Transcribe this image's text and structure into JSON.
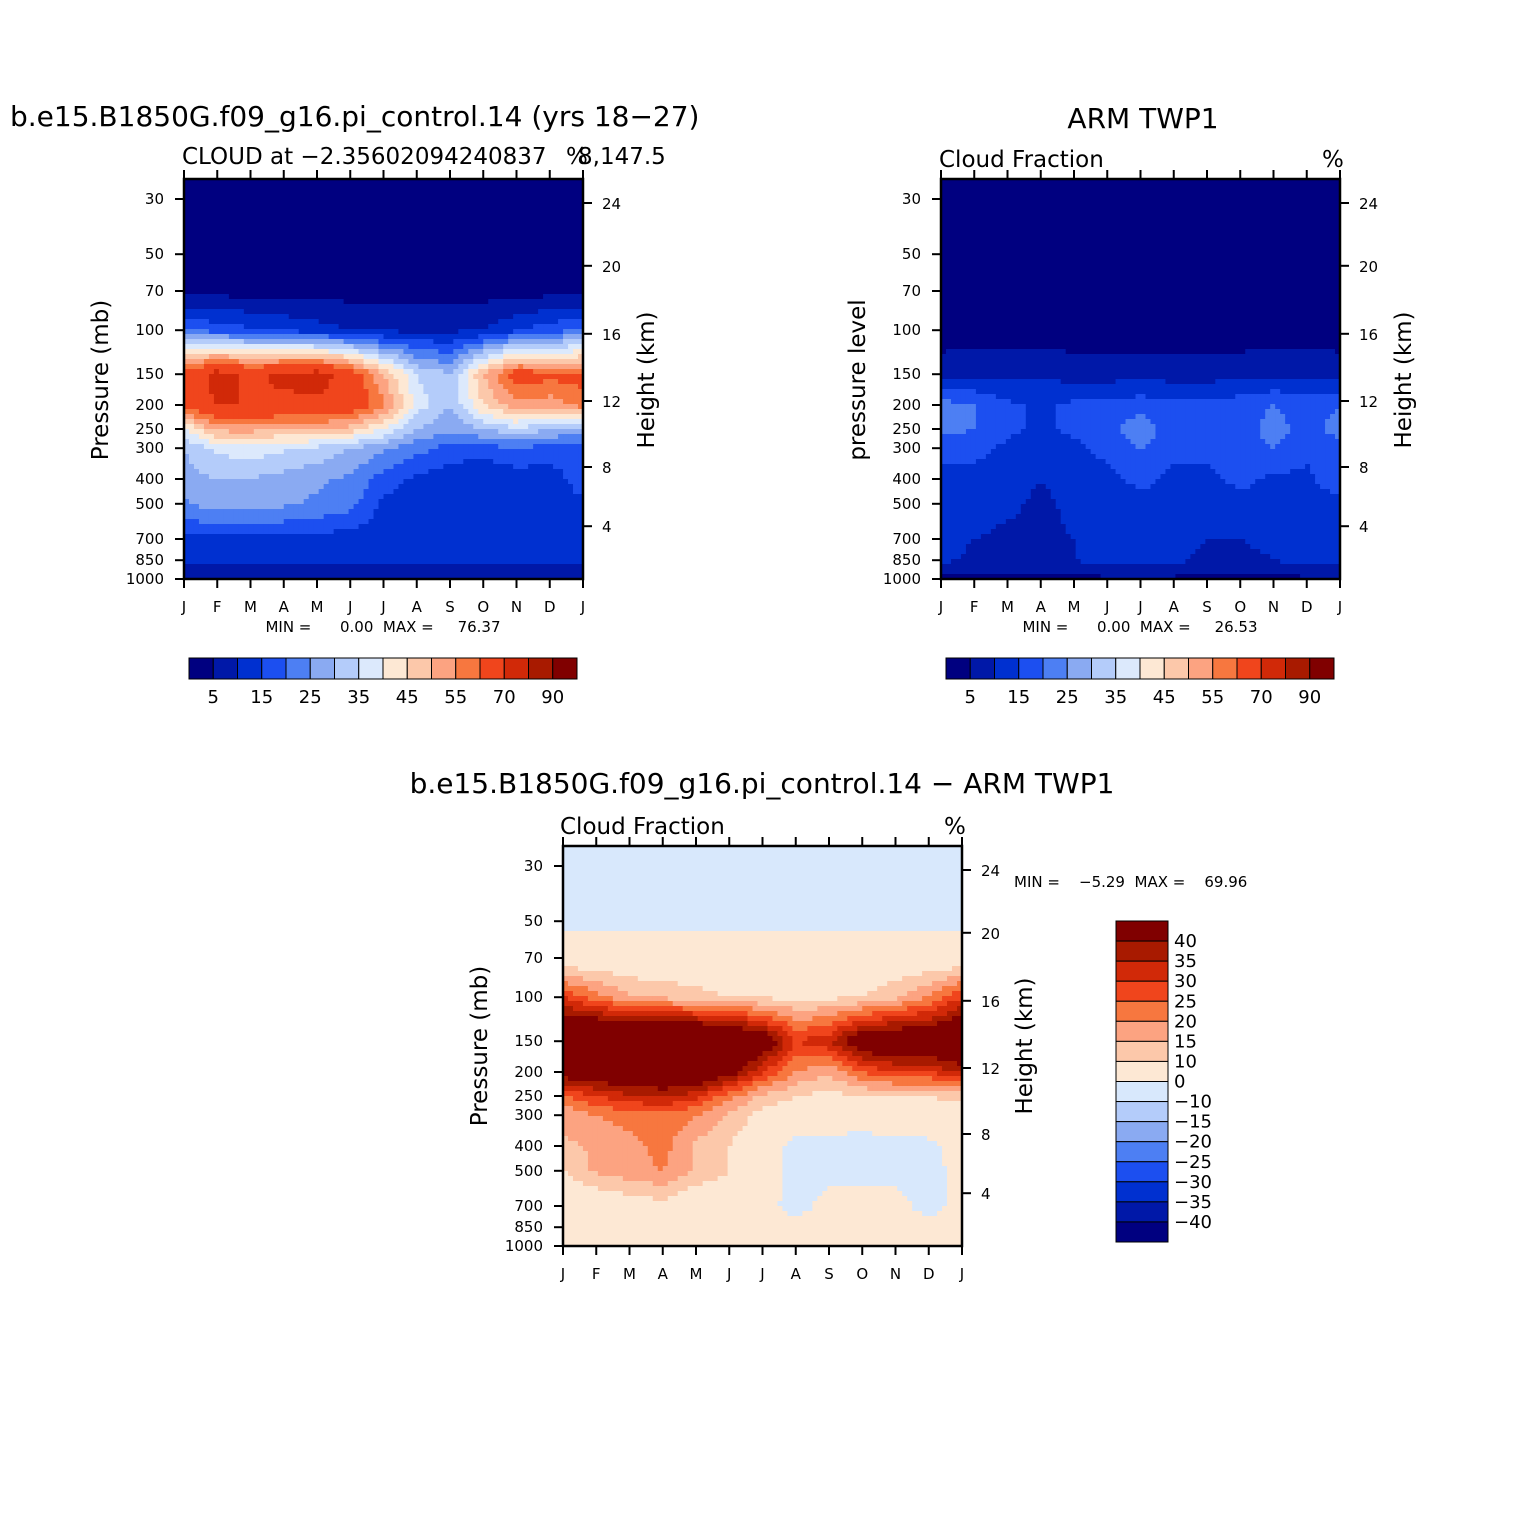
{
  "palette": {
    "abs": [
      "#000080",
      "#0018a8",
      "#0030d0",
      "#1c4ff0",
      "#4d7ff3",
      "#8aaaf2",
      "#b4ccfa",
      "#dce9fc",
      "#fde8d4",
      "#fcc8aa",
      "#fca381",
      "#f7773f",
      "#f0451c",
      "#d12908",
      "#a81a00",
      "#800000"
    ],
    "diff": [
      "#000080",
      "#0018a8",
      "#0030d0",
      "#1c4ff0",
      "#4d7ff3",
      "#8aaaf2",
      "#b4ccfa",
      "#d8e8fc",
      "#fde8d4",
      "#fcc8aa",
      "#fca381",
      "#f7773f",
      "#f0451c",
      "#d12908",
      "#a81a00",
      "#800000"
    ]
  },
  "panel1": {
    "title": "b.e15.B1850G.f09_g16.pi_control.14 (yrs 18−27)",
    "subtitle": "CLOUD at −2.35602094240837",
    "subtitle2": "8,147.5",
    "units": "%",
    "ylabel": "Pressure (mb)",
    "ylabel_right": "Height (km)",
    "minmax": "MIN =      0.00  MAX =     76.37",
    "colorbar_labels": [
      "5",
      "15",
      "25",
      "35",
      "45",
      "55",
      "70",
      "90"
    ]
  },
  "panel2": {
    "title": "ARM TWP1",
    "subtitle": "Cloud Fraction",
    "units": "%",
    "ylabel": "pressure level",
    "ylabel_right": "Height (km)",
    "minmax": "MIN =      0.00  MAX =     26.53",
    "colorbar_labels": [
      "5",
      "15",
      "25",
      "35",
      "45",
      "55",
      "70",
      "90"
    ]
  },
  "panel3": {
    "title": "b.e15.B1850G.f09_g16.pi_control.14 − ARM TWP1",
    "subtitle": "Cloud Fraction",
    "units": "%",
    "ylabel": "Pressure (mb)",
    "ylabel_right": "Height (km)",
    "minmax": "MIN =    −5.29  MAX =    69.96",
    "colorbar_labels": [
      "40",
      "35",
      "30",
      "25",
      "20",
      "15",
      "10",
      "0",
      "−10",
      "−15",
      "−20",
      "−25",
      "−30",
      "−35",
      "−40"
    ]
  },
  "chart_data": [
    {
      "type": "heatmap",
      "title": "b.e15.B1850G.f09_g16.pi_control.14 (yrs 18−27)",
      "x": [
        "J",
        "F",
        "M",
        "A",
        "M",
        "J",
        "J",
        "A",
        "S",
        "O",
        "N",
        "D",
        "J"
      ],
      "y_pressure_mb": [
        30,
        50,
        70,
        100,
        150,
        200,
        250,
        300,
        400,
        500,
        700,
        850,
        1000
      ],
      "y_height_km": [
        24,
        20,
        16,
        12,
        8,
        4
      ],
      "ylabel": "Pressure (mb)",
      "ylabel_right": "Height (km)",
      "min": 0.0,
      "max": 76.37,
      "levels": [
        5,
        10,
        15,
        20,
        25,
        30,
        35,
        40,
        45,
        50,
        55,
        60,
        70,
        80,
        90
      ],
      "values": [
        [
          2,
          2,
          2,
          2,
          2,
          2,
          2,
          2,
          2,
          2,
          2,
          2,
          2
        ],
        [
          2,
          2,
          2,
          2,
          2,
          2,
          2,
          2,
          2,
          2,
          2,
          2,
          2
        ],
        [
          3,
          3,
          3,
          3,
          3,
          3,
          3,
          3,
          3,
          3,
          3,
          3,
          3
        ],
        [
          20,
          18,
          16,
          14,
          12,
          10,
          9,
          9,
          9,
          10,
          14,
          18,
          20
        ],
        [
          62,
          74,
          68,
          72,
          74,
          66,
          50,
          35,
          30,
          50,
          64,
          62,
          62
        ],
        [
          62,
          70,
          70,
          68,
          68,
          66,
          56,
          38,
          30,
          45,
          54,
          52,
          58
        ],
        [
          40,
          52,
          52,
          50,
          50,
          48,
          40,
          30,
          26,
          30,
          34,
          30,
          28
        ],
        [
          30,
          36,
          38,
          36,
          34,
          30,
          26,
          22,
          18,
          18,
          20,
          18,
          18
        ],
        [
          28,
          30,
          30,
          28,
          26,
          24,
          18,
          14,
          12,
          10,
          12,
          12,
          18
        ],
        [
          24,
          28,
          28,
          26,
          24,
          22,
          14,
          10,
          10,
          10,
          12,
          12,
          14
        ],
        [
          14,
          14,
          14,
          14,
          14,
          12,
          12,
          12,
          12,
          12,
          12,
          12,
          12
        ],
        [
          12,
          12,
          12,
          12,
          12,
          12,
          12,
          12,
          12,
          12,
          12,
          12,
          12
        ],
        [
          5,
          5,
          5,
          5,
          5,
          5,
          5,
          5,
          5,
          5,
          5,
          5,
          5
        ]
      ]
    },
    {
      "type": "heatmap",
      "title": "ARM TWP1",
      "subtitle": "Cloud Fraction",
      "x": [
        "J",
        "F",
        "M",
        "A",
        "M",
        "J",
        "J",
        "A",
        "S",
        "O",
        "N",
        "D",
        "J"
      ],
      "y_pressure_mb": [
        30,
        50,
        70,
        100,
        150,
        200,
        250,
        300,
        400,
        500,
        700,
        850,
        1000
      ],
      "y_height_km": [
        24,
        20,
        16,
        12,
        8,
        4
      ],
      "ylabel": "pressure level",
      "ylabel_right": "Height (km)",
      "min": 0.0,
      "max": 26.53,
      "levels": [
        5,
        10,
        15,
        20,
        25,
        30,
        35,
        40,
        45,
        50,
        55,
        60,
        70,
        80,
        90
      ],
      "values": [
        [
          1,
          1,
          1,
          1,
          1,
          1,
          1,
          1,
          1,
          1,
          1,
          1,
          1
        ],
        [
          1,
          1,
          1,
          1,
          1,
          1,
          1,
          1,
          1,
          1,
          1,
          1,
          1
        ],
        [
          1,
          1,
          1,
          1,
          1,
          1,
          1,
          1,
          1,
          1,
          1,
          1,
          1
        ],
        [
          2,
          2,
          2,
          2,
          2,
          2,
          2,
          2,
          2,
          2,
          2,
          2,
          2
        ],
        [
          8,
          9,
          9,
          9,
          8,
          8,
          8,
          8,
          8,
          8,
          9,
          9,
          8
        ],
        [
          22,
          20,
          16,
          14,
          16,
          16,
          18,
          16,
          16,
          18,
          20,
          18,
          20
        ],
        [
          22,
          20,
          16,
          14,
          16,
          18,
          24,
          16,
          16,
          18,
          22,
          18,
          22
        ],
        [
          16,
          16,
          14,
          12,
          14,
          16,
          20,
          16,
          16,
          18,
          20,
          16,
          18
        ],
        [
          14,
          14,
          14,
          10,
          14,
          14,
          16,
          14,
          14,
          16,
          14,
          14,
          18
        ],
        [
          14,
          14,
          12,
          8,
          12,
          12,
          14,
          14,
          12,
          14,
          14,
          12,
          14
        ],
        [
          12,
          10,
          8,
          8,
          10,
          12,
          12,
          12,
          10,
          10,
          12,
          12,
          12
        ],
        [
          11,
          9,
          8,
          8,
          10,
          12,
          12,
          12,
          8,
          8,
          10,
          12,
          12
        ],
        [
          4,
          4,
          4,
          4,
          4,
          4,
          4,
          4,
          4,
          4,
          4,
          4,
          4
        ]
      ]
    },
    {
      "type": "heatmap",
      "title": "b.e15.B1850G.f09_g16.pi_control.14 − ARM TWP1",
      "subtitle": "Cloud Fraction",
      "x": [
        "J",
        "F",
        "M",
        "A",
        "M",
        "J",
        "J",
        "A",
        "S",
        "O",
        "N",
        "D",
        "J"
      ],
      "y_pressure_mb": [
        30,
        50,
        70,
        100,
        150,
        200,
        250,
        300,
        400,
        500,
        700,
        850,
        1000
      ],
      "y_height_km": [
        24,
        20,
        16,
        12,
        8,
        4
      ],
      "ylabel": "Pressure (mb)",
      "ylabel_right": "Height (km)",
      "min": -5.29,
      "max": 69.96,
      "levels": [
        -40,
        -35,
        -30,
        -25,
        -20,
        -15,
        -10,
        0,
        10,
        15,
        20,
        25,
        30,
        35,
        40
      ],
      "values": [
        [
          -2,
          -2,
          -2,
          -2,
          -2,
          -2,
          -2,
          -2,
          -2,
          -2,
          -2,
          -2,
          -2
        ],
        [
          -2,
          -2,
          -2,
          -2,
          -2,
          -2,
          -2,
          -2,
          -2,
          -2,
          -2,
          -2,
          -2
        ],
        [
          4,
          4,
          4,
          4,
          4,
          4,
          4,
          4,
          4,
          4,
          4,
          4,
          4
        ],
        [
          30,
          22,
          16,
          14,
          12,
          10,
          9,
          9,
          9,
          10,
          14,
          20,
          30
        ],
        [
          56,
          60,
          58,
          60,
          60,
          56,
          48,
          30,
          34,
          48,
          50,
          50,
          54
        ],
        [
          45,
          48,
          48,
          50,
          50,
          44,
          30,
          20,
          16,
          25,
          30,
          30,
          36
        ],
        [
          24,
          30,
          34,
          36,
          32,
          22,
          14,
          10,
          8,
          10,
          10,
          10,
          12
        ],
        [
          16,
          20,
          22,
          24,
          20,
          14,
          8,
          5,
          4,
          2,
          6,
          6,
          6
        ],
        [
          14,
          16,
          18,
          22,
          14,
          10,
          4,
          -2,
          -2,
          -2,
          -2,
          -2,
          4
        ],
        [
          10,
          16,
          18,
          20,
          14,
          10,
          4,
          -2,
          -2,
          -2,
          -2,
          -2,
          2
        ],
        [
          2,
          4,
          6,
          8,
          4,
          4,
          2,
          -2,
          2,
          2,
          2,
          -2,
          2
        ],
        [
          2,
          2,
          2,
          2,
          2,
          2,
          2,
          2,
          2,
          2,
          2,
          2,
          2
        ],
        [
          2,
          2,
          2,
          2,
          2,
          2,
          2,
          2,
          2,
          2,
          2,
          2,
          2
        ]
      ]
    }
  ]
}
